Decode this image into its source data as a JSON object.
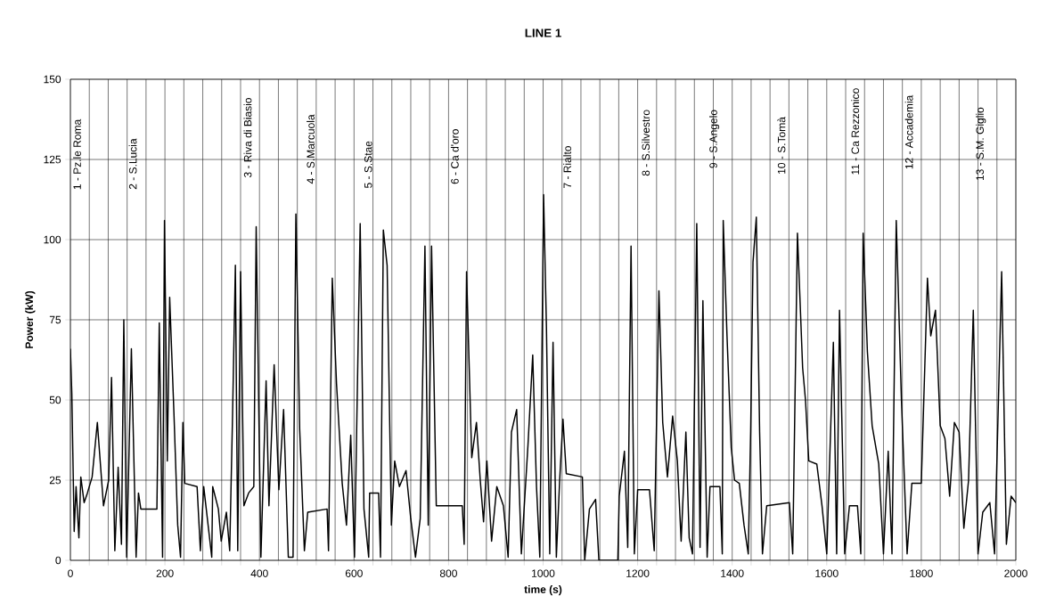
{
  "chart_data": {
    "type": "line",
    "title": "LINE 1",
    "xlabel": "time (s)",
    "ylabel": "Power (kW)",
    "xlim": [
      0,
      2000
    ],
    "ylim": [
      0,
      150
    ],
    "xticks": [
      0,
      {
        "value": 40,
        "label": null
      },
      {
        "value": 80,
        "label": null
      },
      {
        "value": 120,
        "label": null
      },
      {
        "value": 160,
        "label": null
      },
      200,
      {
        "value": 240,
        "label": null
      },
      {
        "value": 280,
        "label": null
      },
      {
        "value": 320,
        "label": null
      },
      {
        "value": 360,
        "label": null
      },
      400,
      {
        "value": 440,
        "label": null
      },
      {
        "value": 480,
        "label": null
      },
      {
        "value": 520,
        "label": null
      },
      {
        "value": 560,
        "label": null
      },
      600,
      {
        "value": 640,
        "label": null
      },
      {
        "value": 680,
        "label": null
      },
      {
        "value": 720,
        "label": null
      },
      {
        "value": 760,
        "label": null
      },
      800,
      {
        "value": 840,
        "label": null
      },
      {
        "value": 880,
        "label": null
      },
      {
        "value": 920,
        "label": null
      },
      {
        "value": 960,
        "label": null
      },
      1000,
      {
        "value": 1040,
        "label": null
      },
      {
        "value": 1080,
        "label": null
      },
      {
        "value": 1120,
        "label": null
      },
      {
        "value": 1160,
        "label": null
      },
      1200,
      {
        "value": 1240,
        "label": null
      },
      {
        "value": 1280,
        "label": null
      },
      {
        "value": 1320,
        "label": null
      },
      {
        "value": 1360,
        "label": null
      },
      1400,
      {
        "value": 1440,
        "label": null
      },
      {
        "value": 1480,
        "label": null
      },
      {
        "value": 1520,
        "label": null
      },
      {
        "value": 1560,
        "label": null
      },
      1600,
      {
        "value": 1640,
        "label": null
      },
      {
        "value": 1680,
        "label": null
      },
      {
        "value": 1720,
        "label": null
      },
      {
        "value": 1760,
        "label": null
      },
      1800,
      {
        "value": 1840,
        "label": null
      },
      {
        "value": 1880,
        "label": null
      },
      {
        "value": 1920,
        "label": null
      },
      {
        "value": 1960,
        "label": null
      },
      2000
    ],
    "yticks": [
      0,
      25,
      50,
      75,
      100,
      125,
      150
    ],
    "grid": true,
    "x": [
      0,
      3,
      8,
      12,
      18,
      22,
      29,
      36,
      46,
      57,
      63,
      70,
      81,
      87,
      94,
      101,
      108,
      113,
      119,
      129,
      139,
      144,
      149,
      183,
      188,
      195,
      199,
      205,
      210,
      219,
      227,
      233,
      238,
      242,
      268,
      275,
      282,
      299,
      301,
      313,
      319,
      330,
      337,
      343,
      349,
      354,
      360,
      367,
      377,
      388,
      393,
      403,
      414,
      420,
      431,
      441,
      451,
      461,
      471,
      477,
      485,
      495,
      502,
      543,
      546,
      554,
      563,
      575,
      584,
      593,
      601,
      613,
      621,
      631,
      633,
      652,
      656,
      662,
      670,
      679,
      686,
      696,
      710,
      720,
      730,
      740,
      750,
      757,
      764,
      774,
      829,
      833,
      838,
      849,
      859,
      867,
      874,
      881,
      891,
      902,
      916,
      926,
      933,
      944,
      954,
      968,
      978,
      986,
      993,
      1001,
      1007,
      1014,
      1021,
      1028,
      1035,
      1042,
      1049,
      1083,
      1088,
      1098,
      1111,
      1118,
      1158,
      1161,
      1172,
      1179,
      1186,
      1193,
      1200,
      1225,
      1235,
      1245,
      1253,
      1263,
      1274,
      1284,
      1292,
      1302,
      1309,
      1316,
      1325,
      1332,
      1338,
      1347,
      1353,
      1374,
      1379,
      1381,
      1389,
      1398,
      1405,
      1415,
      1425,
      1434,
      1439,
      1444,
      1451,
      1458,
      1464,
      1473,
      1521,
      1528,
      1538,
      1549,
      1555,
      1562,
      1579,
      1590,
      1600,
      1614,
      1621,
      1627,
      1638,
      1648,
      1665,
      1672,
      1677,
      1686,
      1696,
      1710,
      1720,
      1730,
      1738,
      1747,
      1758,
      1770,
      1780,
      1800,
      1813,
      1820,
      1830,
      1840,
      1850,
      1860,
      1870,
      1880,
      1890,
      1900,
      1910,
      1920,
      1930,
      1945,
      1955,
      1970,
      1980,
      1990,
      2000
    ],
    "values": [
      66,
      52,
      9,
      23,
      7,
      26,
      18,
      21,
      26,
      43,
      31,
      17,
      25,
      57,
      3,
      29,
      5,
      75,
      1,
      66,
      1,
      21,
      16,
      16,
      74,
      1,
      106,
      31,
      82,
      46,
      11,
      1,
      43,
      24,
      23,
      3,
      23,
      1,
      23,
      16,
      6,
      15,
      3,
      45,
      92,
      3,
      90,
      17,
      21,
      23,
      104,
      1,
      56,
      17,
      61,
      22,
      47,
      1,
      1,
      108,
      41,
      3,
      15,
      16,
      3,
      88,
      55,
      24,
      11,
      39,
      1,
      105,
      16,
      1,
      21,
      21,
      1,
      103,
      92,
      11,
      31,
      23,
      28,
      13,
      1,
      13,
      98,
      11,
      98,
      17,
      17,
      5,
      90,
      32,
      43,
      25,
      12,
      31,
      6,
      23,
      17,
      1,
      40,
      47,
      2,
      36,
      64,
      23,
      1,
      114,
      73,
      2,
      68,
      1,
      25,
      44,
      27,
      26,
      0,
      16,
      19,
      0,
      0,
      20,
      34,
      4,
      98,
      2,
      22,
      22,
      3,
      84,
      43,
      26,
      45,
      31,
      6,
      40,
      7,
      2,
      105,
      4,
      81,
      1,
      23,
      23,
      2,
      106,
      70,
      35,
      25,
      24,
      11,
      2,
      40,
      93,
      107,
      40,
      2,
      17,
      18,
      2,
      102,
      60,
      50,
      31,
      30,
      17,
      2,
      68,
      2,
      78,
      2,
      17,
      17,
      2,
      102,
      65,
      42,
      30,
      2,
      34,
      2,
      106,
      50,
      2,
      24,
      24,
      88,
      70,
      78,
      42,
      38,
      20,
      43,
      40,
      10,
      25,
      78,
      2,
      15,
      18,
      2,
      90,
      5,
      20,
      18
    ],
    "color": "#000000",
    "annotations": [
      "1 - Pz.le Roma",
      "2 - S.Lucia",
      "3 - Riva di Biasio",
      "4 - S.Marcuola",
      "5 - S.Stae",
      "6 - Ca d'oro",
      "7 - Rialto",
      "8 - S.Silvestro",
      "9 - S.Angelo",
      "10 - S.Tomà",
      "11 - Ca Rezzonico",
      "12 - Accademia",
      "13 - S.M. Giglio"
    ]
  }
}
